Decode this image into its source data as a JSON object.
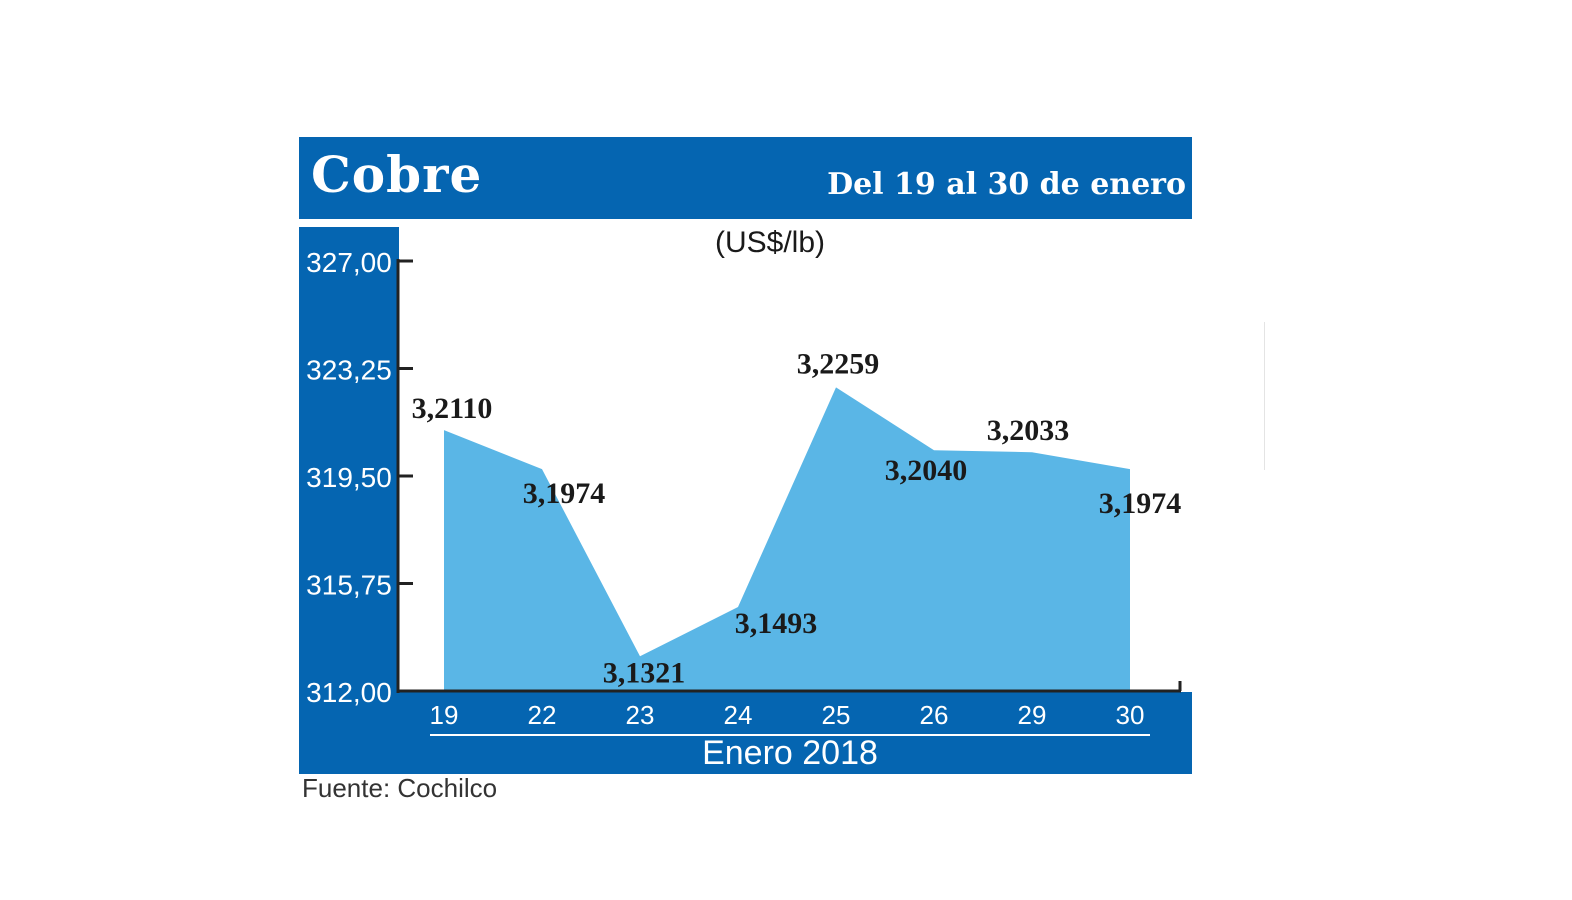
{
  "header": {
    "title": "Cobre",
    "subtitle": "Del 19 al 30 de enero"
  },
  "footer": {
    "source": "Fuente: Cochilco"
  },
  "colors": {
    "band": "#0565b1",
    "area": "#5ab6e6",
    "axis": "#222222"
  },
  "chart_data": {
    "type": "area",
    "unit_label": "(US$/lb)",
    "xlabel": "Enero  2018",
    "categories": [
      "19",
      "22",
      "23",
      "24",
      "25",
      "26",
      "29",
      "30"
    ],
    "series": [
      {
        "values": [
          3.211,
          3.1974,
          3.1321,
          3.1493,
          3.2259,
          3.204,
          3.2033,
          3.1974
        ],
        "labels": [
          "3,2110",
          "3,1974",
          "3,1321",
          "3,1493",
          "3,2259",
          "3,2040",
          "3,2033",
          "3,1974"
        ]
      }
    ],
    "yticks": [
      "327,00",
      "323,25",
      "319,50",
      "315,75",
      "312,00"
    ],
    "ylim": [
      3.12,
      3.27
    ],
    "grid": false,
    "legend": "none"
  }
}
